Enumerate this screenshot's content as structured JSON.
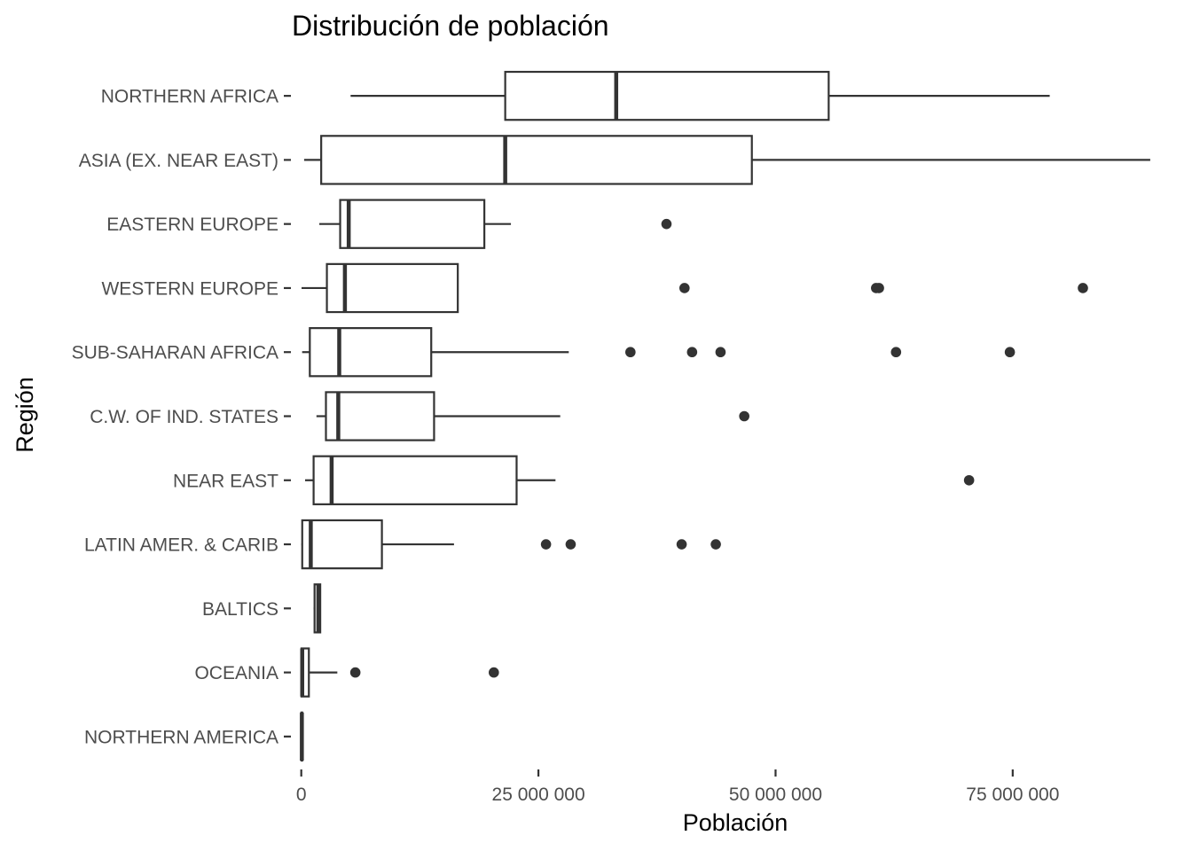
{
  "chart_data": {
    "type": "boxplot",
    "orientation": "horizontal",
    "title": "Distribución de población",
    "xlabel": "Población",
    "ylabel": "Región",
    "xlim": [
      -1000000,
      89600000
    ],
    "xticks": [
      0,
      25000000,
      50000000,
      75000000
    ],
    "xtick_labels": [
      "0",
      "25 000 000",
      "50 000 000",
      "75 000 000"
    ],
    "grid": false,
    "legend": "none",
    "colors": {
      "stroke": "#333333",
      "fill": "#ffffff",
      "outlier": "#333333"
    },
    "categories": [
      "NORTHERN AFRICA",
      "ASIA (EX. NEAR EAST)",
      "EASTERN EUROPE",
      "WESTERN EUROPE",
      "SUB-SAHARAN AFRICA",
      "C.W. OF IND. STATES",
      "NEAR EAST",
      "LATIN AMER. & CARIB",
      "BALTICS",
      "OCEANIA",
      "NORTHERN AMERICA"
    ],
    "boxes": [
      {
        "category": "NORTHERN AFRICA",
        "whisker_low": 5200000,
        "q1": 21500000,
        "median": 33200000,
        "q3": 55600000,
        "whisker_high": 78900000,
        "outliers": []
      },
      {
        "category": "ASIA (EX. NEAR EAST)",
        "whisker_low": 300000,
        "q1": 2100000,
        "median": 21500000,
        "q3": 47500000,
        "whisker_high": 89500000,
        "outliers": []
      },
      {
        "category": "EASTERN EUROPE",
        "whisker_low": 1900000,
        "q1": 4100000,
        "median": 5000000,
        "q3": 19300000,
        "whisker_high": 22100000,
        "outliers": [
          38500000
        ]
      },
      {
        "category": "WESTERN EUROPE",
        "whisker_low": 30000,
        "q1": 2700000,
        "median": 4600000,
        "q3": 16500000,
        "whisker_high": 16500000,
        "outliers": [
          40400000,
          60600000,
          60900000,
          82400000
        ]
      },
      {
        "category": "SUB-SAHARAN AFRICA",
        "whisker_low": 90000,
        "q1": 900000,
        "median": 4000000,
        "q3": 13700000,
        "whisker_high": 28200000,
        "outliers": [
          34700000,
          41200000,
          44200000,
          62700000,
          74700000
        ]
      },
      {
        "category": "C.W. OF IND. STATES",
        "whisker_low": 1600000,
        "q1": 2600000,
        "median": 3900000,
        "q3": 14000000,
        "whisker_high": 27300000,
        "outliers": [
          46700000
        ]
      },
      {
        "category": "NEAR EAST",
        "whisker_low": 400000,
        "q1": 1300000,
        "median": 3200000,
        "q3": 22700000,
        "whisker_high": 26800000,
        "outliers": [
          70400000
        ]
      },
      {
        "category": "LATIN AMER. & CARIB",
        "whisker_low": 10000,
        "q1": 100000,
        "median": 1000000,
        "q3": 8500000,
        "whisker_high": 16100000,
        "outliers": [
          25800000,
          28400000,
          40100000,
          43700000
        ]
      },
      {
        "category": "BALTICS",
        "whisker_low": 1300000,
        "q1": 1400000,
        "median": 1800000,
        "q3": 2000000,
        "whisker_high": 2000000,
        "outliers": []
      },
      {
        "category": "OCEANIA",
        "whisker_low": 10000,
        "q1": 20000,
        "median": 100000,
        "q3": 800000,
        "whisker_high": 3800000,
        "outliers": [
          5700000,
          20300000
        ]
      },
      {
        "category": "NORTHERN AMERICA",
        "whisker_low": 7000,
        "q1": 20000,
        "median": 60000,
        "q3": 100000,
        "whisker_high": 100000,
        "outliers": []
      }
    ]
  }
}
